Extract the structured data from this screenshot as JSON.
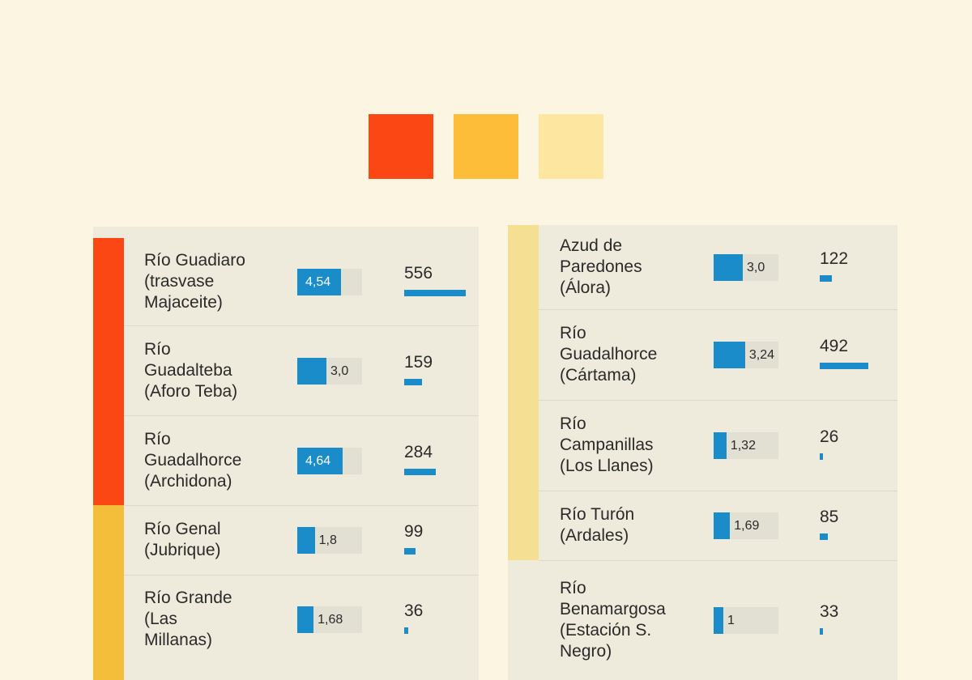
{
  "legend": {
    "colors": [
      "#fa4713",
      "#fdbd38",
      "#fde6a0"
    ]
  },
  "chart_data": {
    "type": "table",
    "title": "",
    "color_scale": [
      "#fa4713",
      "#fdbd38",
      "#fde6a0"
    ],
    "value_scale_max": 5,
    "count_scale_max": 556,
    "left_rows": [
      {
        "name": "Río Guadiaro\n(trasvase\nMajaceite)",
        "value": 4.54,
        "value_label": "4,54",
        "count": 556,
        "count_label": "556",
        "level_color": "#fa4713"
      },
      {
        "name": "Río\nGuadalteba\n(Aforo Teba)",
        "value": 3.0,
        "value_label": "3,0",
        "count": 159,
        "count_label": "159",
        "level_color": "#fa4713"
      },
      {
        "name": "Río\nGuadalhorce\n(Archidona)",
        "value": 4.64,
        "value_label": "4,64",
        "count": 284,
        "count_label": "284",
        "level_color": "#fa4713"
      },
      {
        "name": "Río Genal\n(Jubrique)",
        "value": 1.8,
        "value_label": "1,8",
        "count": 99,
        "count_label": "99",
        "level_color": "#f4bd3a"
      },
      {
        "name": "Río Grande\n(Las\nMillanas)",
        "value": 1.68,
        "value_label": "1,68",
        "count": 36,
        "count_label": "36",
        "level_color": "#f4bd3a"
      }
    ],
    "right_rows": [
      {
        "name": "Azud de\nParedones\n(Álora)",
        "value": 3.0,
        "value_label": "3,0",
        "count": 122,
        "count_label": "122",
        "level_color": "#f5df93"
      },
      {
        "name": "Río\nGuadalhorce\n(Cártama)",
        "value": 3.24,
        "value_label": "3,24",
        "count": 492,
        "count_label": "492",
        "level_color": "#f5df93"
      },
      {
        "name": "Río\nCampanillas\n(Los Llanes)",
        "value": 1.32,
        "value_label": "1,32",
        "count": 26,
        "count_label": "26",
        "level_color": "#f5df93"
      },
      {
        "name": "Río Turón\n(Ardales)",
        "value": 1.69,
        "value_label": "1,69",
        "count": 85,
        "count_label": "85",
        "level_color": "#f5df93"
      },
      {
        "name": "Río\nBenamargosa\n(Estación S.\nNegro)",
        "value": 1,
        "value_label": "1",
        "count": 33,
        "count_label": "33",
        "level_color": ""
      }
    ]
  }
}
